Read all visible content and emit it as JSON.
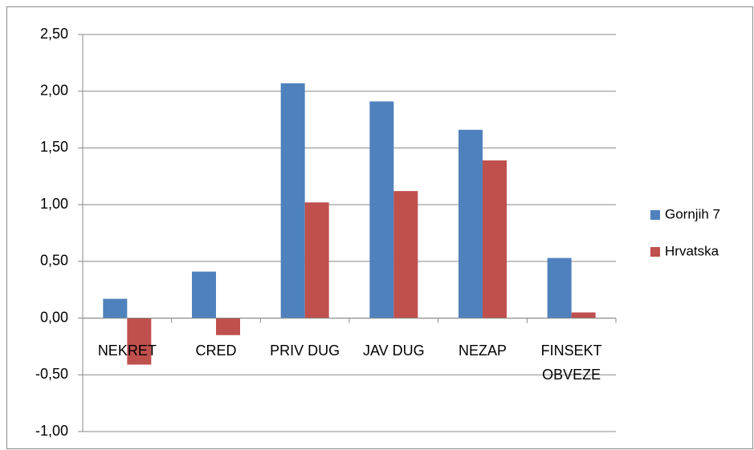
{
  "chart_data": {
    "type": "bar",
    "categories": [
      "NEKRET",
      "CRED",
      "PRIV DUG",
      "JAV DUG",
      "NEZAP",
      "FINSEKT OBVEZE"
    ],
    "series": [
      {
        "name": "Gornjih 7",
        "color": "#4f81bd",
        "values": [
          0.17,
          0.41,
          2.07,
          1.91,
          1.66,
          0.53
        ]
      },
      {
        "name": "Hrvatska",
        "color": "#c0504d",
        "values": [
          -0.41,
          -0.15,
          1.02,
          1.12,
          1.39,
          0.05
        ]
      }
    ],
    "ylim": [
      -1.0,
      2.5
    ],
    "yticks": [
      {
        "value": -1.0,
        "label": "-1,00"
      },
      {
        "value": -0.5,
        "label": "-0,50"
      },
      {
        "value": 0,
        "label": "0,00"
      },
      {
        "value": 0.5,
        "label": "0,50"
      },
      {
        "value": 1.0,
        "label": "1,00"
      },
      {
        "value": 1.5,
        "label": "1,50"
      },
      {
        "value": 2.0,
        "label": "2,00"
      },
      {
        "value": 2.5,
        "label": "2,50"
      }
    ],
    "grid": true,
    "legend": "right"
  }
}
